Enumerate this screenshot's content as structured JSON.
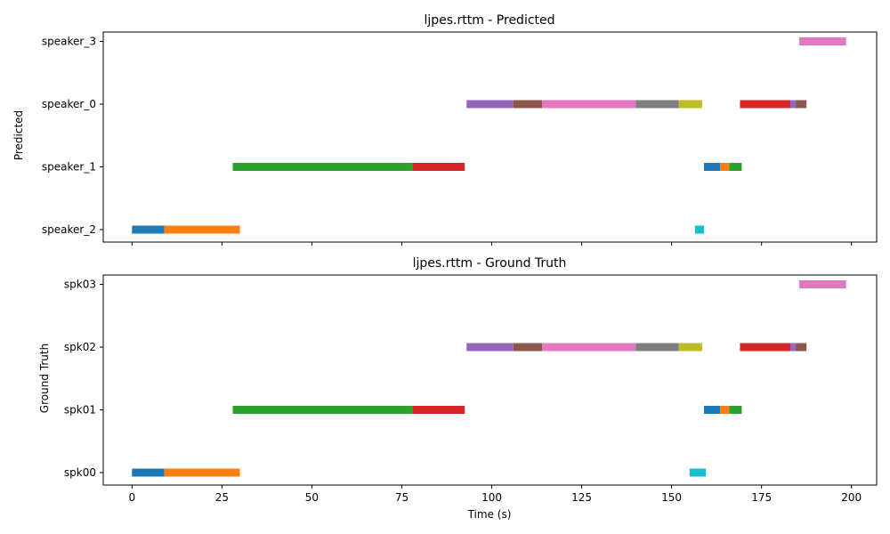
{
  "chart_data": [
    {
      "type": "timeline",
      "title": "ljpes.rttm - Predicted",
      "xlabel": "",
      "ylabel": "Predicted",
      "xlim": [
        -8,
        207
      ],
      "xticks": [
        0,
        25,
        50,
        75,
        100,
        125,
        150,
        175,
        200
      ],
      "show_xtick_labels": false,
      "categories": [
        "speaker_2",
        "speaker_1",
        "speaker_0",
        "speaker_3"
      ],
      "segments": [
        {
          "row": "speaker_2",
          "start": 0,
          "end": 9,
          "color": "#1f77b4"
        },
        {
          "row": "speaker_2",
          "start": 9,
          "end": 30,
          "color": "#ff7f0e"
        },
        {
          "row": "speaker_1",
          "start": 28,
          "end": 78,
          "color": "#2ca02c"
        },
        {
          "row": "speaker_1",
          "start": 78,
          "end": 92.5,
          "color": "#d62728"
        },
        {
          "row": "speaker_0",
          "start": 93,
          "end": 106,
          "color": "#9467bd"
        },
        {
          "row": "speaker_0",
          "start": 106,
          "end": 114,
          "color": "#8c564b"
        },
        {
          "row": "speaker_0",
          "start": 114,
          "end": 140,
          "color": "#e377c2"
        },
        {
          "row": "speaker_0",
          "start": 140,
          "end": 152,
          "color": "#7f7f7f"
        },
        {
          "row": "speaker_0",
          "start": 152,
          "end": 158.5,
          "color": "#bcbd22"
        },
        {
          "row": "speaker_2",
          "start": 156.5,
          "end": 159,
          "color": "#17becf"
        },
        {
          "row": "speaker_1",
          "start": 159,
          "end": 163.5,
          "color": "#1f77b4"
        },
        {
          "row": "speaker_1",
          "start": 163.5,
          "end": 166,
          "color": "#ff7f0e"
        },
        {
          "row": "speaker_1",
          "start": 166,
          "end": 169.5,
          "color": "#2ca02c"
        },
        {
          "row": "speaker_0",
          "start": 169,
          "end": 183,
          "color": "#d62728"
        },
        {
          "row": "speaker_0",
          "start": 183,
          "end": 184.5,
          "color": "#9467bd"
        },
        {
          "row": "speaker_0",
          "start": 184.5,
          "end": 187.5,
          "color": "#8c564b"
        },
        {
          "row": "speaker_3",
          "start": 185.5,
          "end": 198.5,
          "color": "#e377c2"
        }
      ]
    },
    {
      "type": "timeline",
      "title": "ljpes.rttm - Ground Truth",
      "xlabel": "Time (s)",
      "ylabel": "Ground Truth",
      "xlim": [
        -8,
        207
      ],
      "xticks": [
        0,
        25,
        50,
        75,
        100,
        125,
        150,
        175,
        200
      ],
      "show_xtick_labels": true,
      "categories": [
        "spk00",
        "spk01",
        "spk02",
        "spk03"
      ],
      "segments": [
        {
          "row": "spk00",
          "start": 0,
          "end": 9,
          "color": "#1f77b4"
        },
        {
          "row": "spk00",
          "start": 9,
          "end": 30,
          "color": "#ff7f0e"
        },
        {
          "row": "spk01",
          "start": 28,
          "end": 78,
          "color": "#2ca02c"
        },
        {
          "row": "spk01",
          "start": 78,
          "end": 92.5,
          "color": "#d62728"
        },
        {
          "row": "spk02",
          "start": 93,
          "end": 106,
          "color": "#9467bd"
        },
        {
          "row": "spk02",
          "start": 106,
          "end": 114,
          "color": "#8c564b"
        },
        {
          "row": "spk02",
          "start": 114,
          "end": 140,
          "color": "#e377c2"
        },
        {
          "row": "spk02",
          "start": 140,
          "end": 152,
          "color": "#7f7f7f"
        },
        {
          "row": "spk02",
          "start": 152,
          "end": 158.5,
          "color": "#bcbd22"
        },
        {
          "row": "spk00",
          "start": 155,
          "end": 159.5,
          "color": "#17becf"
        },
        {
          "row": "spk01",
          "start": 159,
          "end": 163.5,
          "color": "#1f77b4"
        },
        {
          "row": "spk01",
          "start": 163.5,
          "end": 166,
          "color": "#ff7f0e"
        },
        {
          "row": "spk01",
          "start": 166,
          "end": 169.5,
          "color": "#2ca02c"
        },
        {
          "row": "spk02",
          "start": 169,
          "end": 183,
          "color": "#d62728"
        },
        {
          "row": "spk02",
          "start": 183,
          "end": 184.5,
          "color": "#9467bd"
        },
        {
          "row": "spk02",
          "start": 184.5,
          "end": 187.5,
          "color": "#8c564b"
        },
        {
          "row": "spk03",
          "start": 185.5,
          "end": 198.5,
          "color": "#e377c2"
        }
      ]
    }
  ]
}
